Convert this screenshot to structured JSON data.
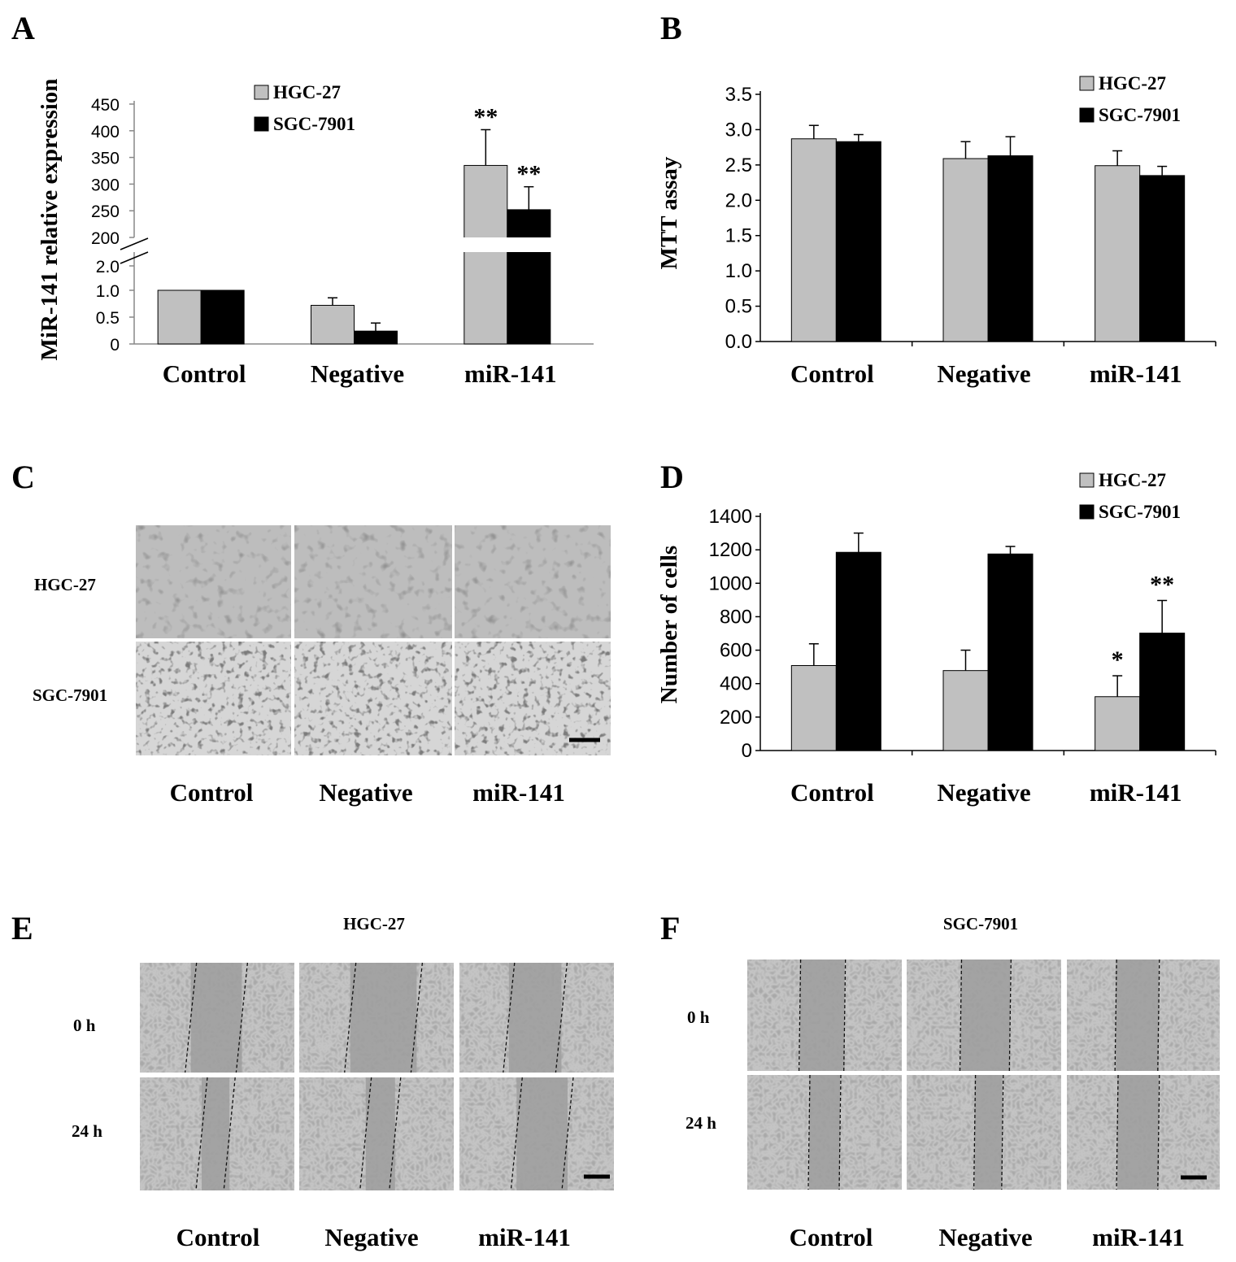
{
  "colors": {
    "hgc27": "#c0c0c0",
    "sgc7901": "#000000"
  },
  "legend": [
    "HGC-27",
    "SGC-7901"
  ],
  "categories": [
    "Control",
    "Negative",
    "miR-141"
  ],
  "panels": {
    "A": {
      "letter": "A",
      "ylabel": "MiR-141 relative expression"
    },
    "B": {
      "letter": "B",
      "ylabel": "MTT assay"
    },
    "C": {
      "letter": "C",
      "rows": [
        "HGC-27",
        "SGC-7901"
      ]
    },
    "D": {
      "letter": "D",
      "ylabel": "Number of cells"
    },
    "E": {
      "letter": "E",
      "title": "HGC-27",
      "rows": [
        "0 h",
        "24 h"
      ]
    },
    "F": {
      "letter": "F",
      "title": "SGC-7901",
      "rows": [
        "0 h",
        "24 h"
      ]
    }
  },
  "chart_data": [
    {
      "panel": "A",
      "type": "bar",
      "ylabel": "MiR-141 relative expression",
      "categories": [
        "Control",
        "Negative",
        "miR-141"
      ],
      "y_axis_broken": true,
      "yticks_lower": [
        "0",
        "0.5",
        "1.0",
        "2.0"
      ],
      "yticks_upper": [
        "200",
        "250",
        "300",
        "350",
        "400",
        "450"
      ],
      "series": [
        {
          "name": "HGC-27",
          "values": [
            1.0,
            0.72,
            335
          ],
          "errors": [
            0.0,
            0.14,
            67
          ]
        },
        {
          "name": "SGC-7901",
          "values": [
            1.0,
            0.24,
            252
          ],
          "errors": [
            0.0,
            0.15,
            43
          ]
        }
      ],
      "significance": [
        {
          "category": "miR-141",
          "series": "HGC-27",
          "mark": "**"
        },
        {
          "category": "miR-141",
          "series": "SGC-7901",
          "mark": "**"
        }
      ]
    },
    {
      "panel": "B",
      "type": "bar",
      "ylabel": "MTT assay",
      "categories": [
        "Control",
        "Negative",
        "miR-141"
      ],
      "ylim": [
        0,
        3.5
      ],
      "yticks": [
        "0.0",
        "0.5",
        "1.0",
        "1.5",
        "2.0",
        "2.5",
        "3.0",
        "3.5"
      ],
      "series": [
        {
          "name": "HGC-27",
          "values": [
            2.87,
            2.59,
            2.49
          ],
          "errors": [
            0.19,
            0.24,
            0.21
          ]
        },
        {
          "name": "SGC-7901",
          "values": [
            2.83,
            2.63,
            2.35
          ],
          "errors": [
            0.1,
            0.27,
            0.13
          ]
        }
      ]
    },
    {
      "panel": "D",
      "type": "bar",
      "ylabel": "Number of cells",
      "categories": [
        "Control",
        "Negative",
        "miR-141"
      ],
      "ylim": [
        0,
        1400
      ],
      "yticks": [
        "0",
        "200",
        "400",
        "600",
        "800",
        "1000",
        "1200",
        "1400"
      ],
      "series": [
        {
          "name": "HGC-27",
          "values": [
            508,
            478,
            322
          ],
          "errors": [
            130,
            122,
            125
          ]
        },
        {
          "name": "SGC-7901",
          "values": [
            1185,
            1175,
            702
          ],
          "errors": [
            115,
            45,
            195
          ]
        }
      ],
      "significance": [
        {
          "category": "miR-141",
          "series": "HGC-27",
          "mark": "*"
        },
        {
          "category": "miR-141",
          "series": "SGC-7901",
          "mark": "**"
        }
      ]
    }
  ]
}
